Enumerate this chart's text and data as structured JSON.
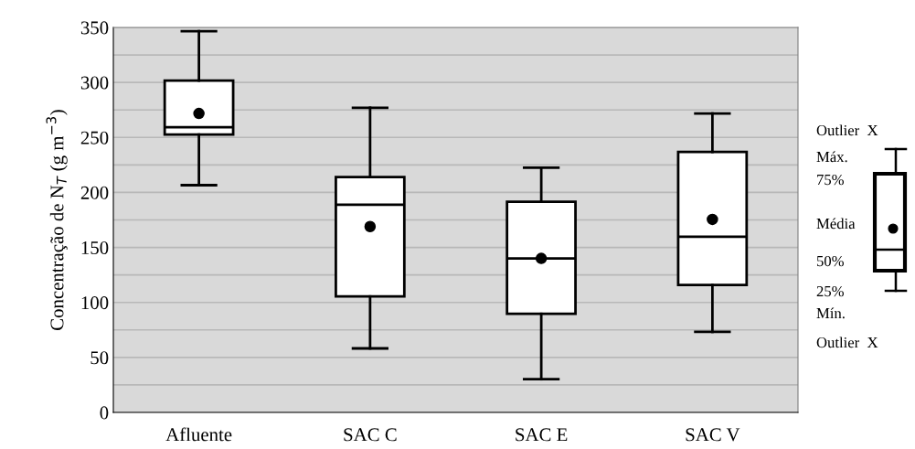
{
  "chart_data": {
    "type": "box",
    "ylabel": "Concentração de N$_{T}$ (g m$^{−3}$)",
    "categories": [
      "Afluente",
      "SAC C",
      "SAC E",
      "SAC V"
    ],
    "boxes": [
      {
        "low": 206.6,
        "q1": 252.6,
        "median": 259.3,
        "q3": 301.7,
        "high": 346.6,
        "mean": 271.8
      },
      {
        "low": 58.2,
        "q1": 105.4,
        "median": 188.9,
        "q3": 214,
        "high": 277,
        "mean": 169
      },
      {
        "low": 30.2,
        "q1": 89.6,
        "median": 140,
        "q3": 191.6,
        "high": 222.4,
        "mean": 140
      },
      {
        "low": 73.2,
        "q1": 115.8,
        "median": 159.7,
        "q3": 236.8,
        "high": 271.8,
        "mean": 175.5
      }
    ],
    "ylim": [
      0,
      350
    ],
    "yticks": [
      0,
      {
        "value": 25,
        "label": null
      },
      50,
      {
        "value": 75,
        "label": null
      },
      100,
      {
        "value": 125,
        "label": null
      },
      150,
      {
        "value": 175,
        "label": null
      },
      200,
      {
        "value": 225,
        "label": null
      },
      250,
      {
        "value": 275,
        "label": null
      },
      300,
      {
        "value": 325,
        "label": null
      },
      350
    ],
    "grid": "y",
    "annotations": [
      "Outlier  X",
      "Máx.",
      "75%",
      "Média",
      "50%",
      "25%",
      "Mín.",
      "Outlier  X"
    ]
  }
}
